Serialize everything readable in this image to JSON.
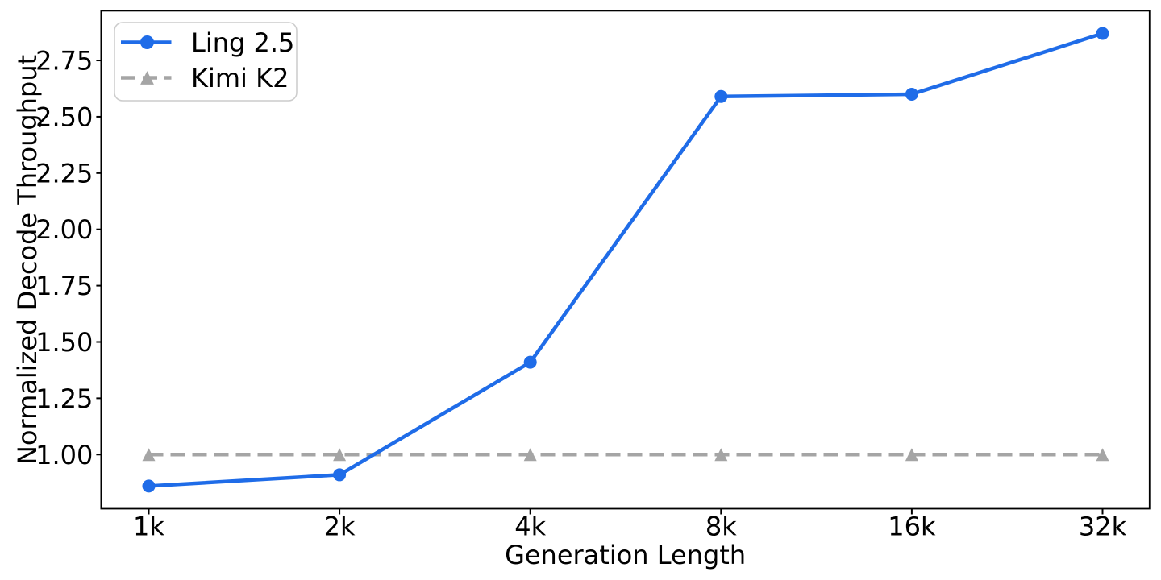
{
  "chart_data": {
    "type": "line",
    "categories": [
      "1k",
      "2k",
      "4k",
      "8k",
      "16k",
      "32k"
    ],
    "series": [
      {
        "name": "Ling 2.5",
        "values": [
          0.86,
          0.91,
          1.41,
          2.59,
          2.6,
          2.87
        ],
        "color": "#1f6ce8",
        "line_style": "solid",
        "marker": "circle"
      },
      {
        "name": "Kimi K2",
        "values": [
          1.0,
          1.0,
          1.0,
          1.0,
          1.0,
          1.0
        ],
        "color": "#a5a5a5",
        "line_style": "dashed",
        "marker": "triangle-up"
      }
    ],
    "title": "",
    "xlabel": "Generation Length",
    "ylabel": "Normalized Decode Throughput",
    "ylim": [
      0.7595,
      2.9705
    ],
    "yticks": [
      "1.00",
      "1.25",
      "1.50",
      "1.75",
      "2.00",
      "2.25",
      "2.50",
      "2.75"
    ],
    "ytick_values": [
      1.0,
      1.25,
      1.5,
      1.75,
      2.0,
      2.25,
      2.5,
      2.75
    ],
    "grid": false,
    "legend_position": "upper left",
    "axis_color": "#000000",
    "text_color": "#000000",
    "legend_border_color": "#cccccc",
    "background_color": "#ffffff"
  }
}
